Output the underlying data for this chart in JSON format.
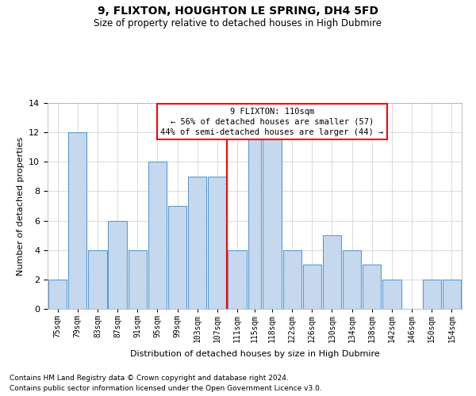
{
  "title": "9, FLIXTON, HOUGHTON LE SPRING, DH4 5FD",
  "subtitle": "Size of property relative to detached houses in High Dubmire",
  "xlabel": "Distribution of detached houses by size in High Dubmire",
  "ylabel": "Number of detached properties",
  "footnote1": "Contains HM Land Registry data © Crown copyright and database right 2024.",
  "footnote2": "Contains public sector information licensed under the Open Government Licence v3.0.",
  "annotation_title": "9 FLIXTON: 110sqm",
  "annotation_line1": "← 56% of detached houses are smaller (57)",
  "annotation_line2": "44% of semi-detached houses are larger (44) →",
  "bar_color": "#c5d8ed",
  "bar_edge_color": "#5b9bd5",
  "marker_color": "red",
  "marker_value": 111,
  "categories": [
    "75sqm",
    "79sqm",
    "83sqm",
    "87sqm",
    "91sqm",
    "95sqm",
    "99sqm",
    "103sqm",
    "107sqm",
    "111sqm",
    "115sqm",
    "118sqm",
    "122sqm",
    "126sqm",
    "130sqm",
    "134sqm",
    "138sqm",
    "142sqm",
    "146sqm",
    "150sqm",
    "154sqm"
  ],
  "bin_edges": [
    75,
    79,
    83,
    87,
    91,
    95,
    99,
    103,
    107,
    111,
    115,
    118,
    122,
    126,
    130,
    134,
    138,
    142,
    146,
    150,
    154,
    158
  ],
  "values": [
    2,
    12,
    4,
    6,
    4,
    10,
    7,
    9,
    9,
    4,
    12,
    12,
    4,
    3,
    5,
    4,
    3,
    2,
    0,
    2,
    2
  ],
  "ylim": [
    0,
    14
  ],
  "yticks": [
    0,
    2,
    4,
    6,
    8,
    10,
    12,
    14
  ],
  "background_color": "#ffffff",
  "grid_color": "#cccccc"
}
